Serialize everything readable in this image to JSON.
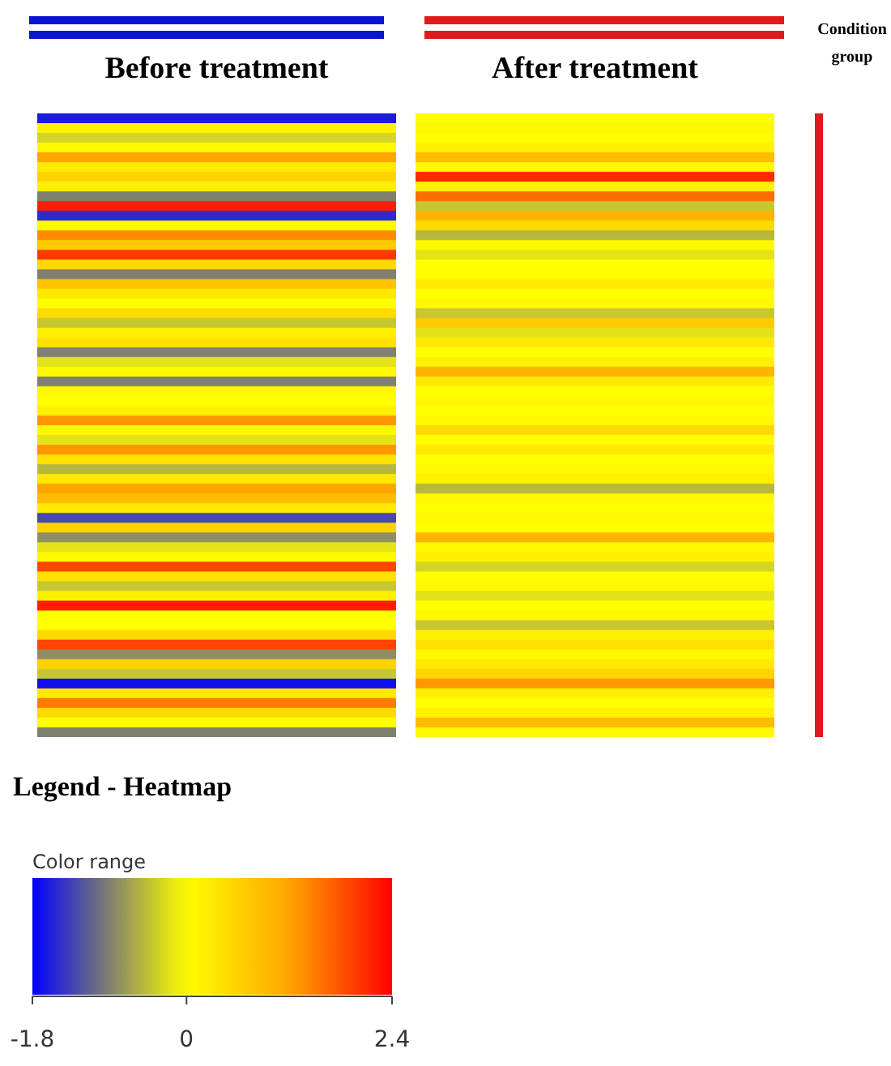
{
  "chart_data": {
    "type": "heatmap",
    "categories": [
      "Before treatment",
      "After treatment"
    ],
    "y_categories": [
      null,
      null,
      null,
      null,
      null,
      null,
      null,
      null,
      null,
      null,
      null,
      null,
      null,
      null,
      null,
      null,
      null,
      null,
      null,
      null,
      null,
      null,
      null,
      null,
      null,
      null,
      null,
      null,
      null,
      null,
      null,
      null,
      null,
      null,
      null,
      null,
      null,
      null,
      null,
      null,
      null,
      null,
      null,
      null,
      null,
      null,
      null,
      null,
      null,
      null,
      null,
      null,
      null,
      null,
      null,
      null,
      null,
      null,
      null,
      null,
      null,
      null,
      null,
      null
    ],
    "cells": [
      [
        -1.6,
        0.0
      ],
      [
        0.2,
        0.1
      ],
      [
        -0.3,
        0.0
      ],
      [
        0.1,
        0.2
      ],
      [
        1.2,
        0.9
      ],
      [
        0.3,
        0.1
      ],
      [
        0.6,
        2.1
      ],
      [
        0.2,
        0.2
      ],
      [
        -0.9,
        1.6
      ],
      [
        2.2,
        -0.4
      ],
      [
        -1.5,
        1.0
      ],
      [
        0.1,
        0.5
      ],
      [
        1.4,
        -0.5
      ],
      [
        0.7,
        0.1
      ],
      [
        2.0,
        -0.2
      ],
      [
        0.5,
        0.0
      ],
      [
        -0.9,
        0.0
      ],
      [
        0.8,
        0.3
      ],
      [
        0.3,
        0.0
      ],
      [
        0.0,
        0.1
      ],
      [
        0.5,
        -0.4
      ],
      [
        -0.4,
        0.7
      ],
      [
        0.2,
        -0.2
      ],
      [
        0.4,
        0.3
      ],
      [
        -0.9,
        0.0
      ],
      [
        -0.2,
        0.2
      ],
      [
        0.1,
        1.0
      ],
      [
        -0.9,
        0.3
      ],
      [
        0.1,
        0.0
      ],
      [
        0.0,
        0.1
      ],
      [
        0.2,
        0.0
      ],
      [
        1.3,
        0.1
      ],
      [
        0.1,
        0.5
      ],
      [
        -0.2,
        0.0
      ],
      [
        1.3,
        0.3
      ],
      [
        0.4,
        0.0
      ],
      [
        -0.5,
        0.1
      ],
      [
        0.3,
        0.2
      ],
      [
        1.2,
        -0.5
      ],
      [
        0.9,
        0.1
      ],
      [
        0.3,
        0.0
      ],
      [
        -1.3,
        0.1
      ],
      [
        0.6,
        0.0
      ],
      [
        -0.8,
        1.0
      ],
      [
        -0.2,
        0.1
      ],
      [
        0.1,
        0.2
      ],
      [
        1.9,
        -0.3
      ],
      [
        0.4,
        0.0
      ],
      [
        -0.4,
        0.1
      ],
      [
        0.2,
        -0.2
      ],
      [
        2.2,
        0.0
      ],
      [
        0.0,
        0.1
      ],
      [
        0.0,
        -0.4
      ],
      [
        0.5,
        0.2
      ],
      [
        1.9,
        0.4
      ],
      [
        -0.8,
        0.1
      ],
      [
        0.6,
        0.3
      ],
      [
        -0.4,
        0.6
      ],
      [
        -1.7,
        1.3
      ],
      [
        0.3,
        0.2
      ],
      [
        1.5,
        0.0
      ],
      [
        0.5,
        0.2
      ],
      [
        0.0,
        0.9
      ],
      [
        -0.9,
        0.1
      ]
    ],
    "clim": [
      -1.8,
      2.4
    ],
    "cticks": [
      -1.8,
      0,
      2.4
    ],
    "clabel": "Color range",
    "legend_title": "Legend - Heatmap",
    "annotations": [
      "Condition group"
    ]
  }
}
